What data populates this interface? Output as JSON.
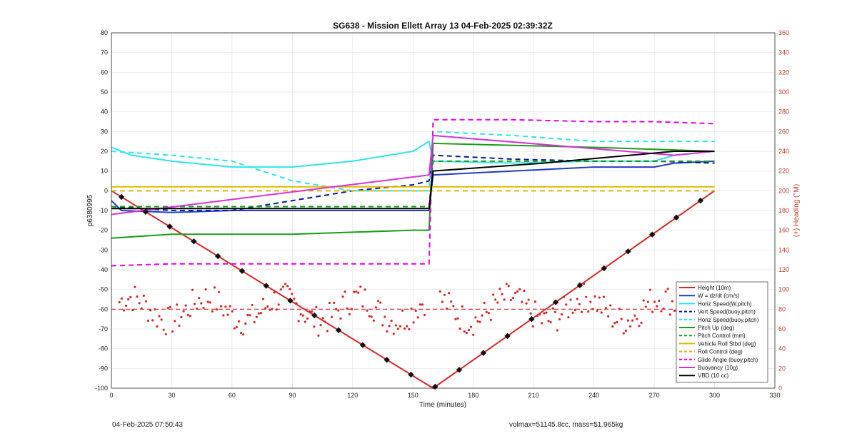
{
  "footer": {
    "left": "04-Feb-2025 07:50:43",
    "right": "volmax=51145.8cc, mass=51.965kg"
  },
  "chart_data": {
    "type": "line",
    "title": "SG638 - Mission Ellett Array 13 04-Feb-2025 02:39:32Z",
    "xlabel": "Time (minutes)",
    "ylabel": "p6380995",
    "ylabel_right": "(+) Heading (°M)",
    "xlim": [
      0,
      330
    ],
    "ylim": [
      -100,
      80
    ],
    "ylim_right": [
      0,
      360
    ],
    "xticks": [
      0,
      30,
      60,
      90,
      120,
      150,
      180,
      210,
      240,
      270,
      300,
      330
    ],
    "yticks": [
      -100,
      -90,
      -80,
      -70,
      -60,
      -50,
      -40,
      -30,
      -20,
      -10,
      0,
      10,
      20,
      30,
      40,
      50,
      60,
      70,
      80
    ],
    "yticks_right": [
      0,
      20,
      40,
      60,
      80,
      100,
      120,
      140,
      160,
      180,
      200,
      220,
      240,
      260,
      280,
      300,
      320,
      340,
      360
    ],
    "grid": true,
    "legend_position": "bottom-right",
    "series": [
      {
        "name": "Height (10m)",
        "color": "#d62728",
        "style": "solid",
        "x": [
          0,
          160,
          300
        ],
        "y": [
          0,
          -100,
          0
        ]
      },
      {
        "name": "W = dz/dt (cm/s)",
        "color": "#1f3fbf",
        "style": "solid",
        "x": [
          0,
          5,
          30,
          60,
          90,
          120,
          150,
          158,
          160,
          200,
          240,
          270,
          280,
          300
        ],
        "y": [
          -5,
          -10,
          -11,
          -10,
          -10,
          -10,
          -10,
          -10,
          8,
          10,
          12,
          12,
          14,
          15
        ]
      },
      {
        "name": "Horiz Speed(W,pitch)",
        "color": "#2ee6e6",
        "style": "solid",
        "x": [
          0,
          10,
          30,
          60,
          90,
          120,
          150,
          158,
          160,
          200,
          240,
          270,
          280,
          300
        ],
        "y": [
          22,
          18,
          15,
          12,
          12,
          15,
          20,
          25,
          15,
          14,
          15,
          15,
          18,
          20
        ]
      },
      {
        "name": "Vert Speed(buoy,pitch)",
        "color": "#0b1a9e",
        "style": "dashed",
        "x": [
          0,
          30,
          60,
          90,
          120,
          150,
          158,
          160,
          200,
          240,
          270,
          300
        ],
        "y": [
          -8,
          -10,
          -10,
          -5,
          0,
          3,
          5,
          18,
          16,
          15,
          15,
          14
        ]
      },
      {
        "name": "Horiz Speed(buoy,pitch)",
        "color": "#2ee6e6",
        "style": "dashed",
        "x": [
          0,
          30,
          60,
          90,
          120,
          150,
          158,
          160,
          200,
          240,
          270,
          300
        ],
        "y": [
          20,
          18,
          15,
          5,
          0,
          0,
          0,
          30,
          28,
          25,
          25,
          25
        ]
      },
      {
        "name": "Pitch Up (deg)",
        "color": "#1a9e1a",
        "style": "solid",
        "x": [
          0,
          30,
          60,
          90,
          120,
          150,
          158,
          160,
          200,
          240,
          270,
          300
        ],
        "y": [
          -24,
          -22,
          -22,
          -22,
          -21,
          -20,
          -20,
          24,
          23,
          22,
          21,
          20
        ]
      },
      {
        "name": "Pitch Control (mm)",
        "color": "#1a9e1a",
        "style": "dashed",
        "x": [
          0,
          30,
          60,
          90,
          120,
          150,
          158,
          160,
          200,
          240,
          270,
          300
        ],
        "y": [
          -8,
          -8,
          -8,
          -8,
          -8,
          -8,
          -8,
          15,
          15,
          15,
          15,
          15
        ]
      },
      {
        "name": "Vehicle Roll Stbd (deg)",
        "color": "#e0b800",
        "style": "solid",
        "x": [
          0,
          30,
          60,
          90,
          120,
          150,
          158,
          160,
          200,
          240,
          270,
          300
        ],
        "y": [
          2,
          2,
          2,
          2,
          2,
          2,
          2,
          2,
          2,
          2,
          2,
          2
        ]
      },
      {
        "name": "Roll Control (deg)",
        "color": "#e0b800",
        "style": "dashed",
        "x": [
          0,
          30,
          60,
          90,
          120,
          150,
          158,
          160,
          200,
          240,
          270,
          300
        ],
        "y": [
          0,
          0,
          0,
          0,
          0,
          0,
          0,
          0,
          0,
          0,
          0,
          0
        ]
      },
      {
        "name": "Glide Angle (buoy,pitch)",
        "color": "#e600e6",
        "style": "dashed",
        "x": [
          0,
          30,
          60,
          90,
          120,
          150,
          158,
          160,
          200,
          240,
          270,
          300
        ],
        "y": [
          -38,
          -37,
          -37,
          -37,
          -37,
          -37,
          -37,
          36,
          36,
          35,
          35,
          34
        ]
      },
      {
        "name": "Buoyancy (10g)",
        "color": "#d633d6",
        "style": "solid",
        "x": [
          0,
          158,
          160,
          280,
          300
        ],
        "y": [
          -12,
          8,
          28,
          18,
          20
        ]
      },
      {
        "name": "VBD (10 cc)",
        "color": "#000000",
        "style": "solid",
        "x": [
          0,
          158,
          160,
          215,
          280,
          300
        ],
        "y": [
          -9,
          -9,
          10,
          14,
          20,
          20
        ]
      }
    ]
  }
}
